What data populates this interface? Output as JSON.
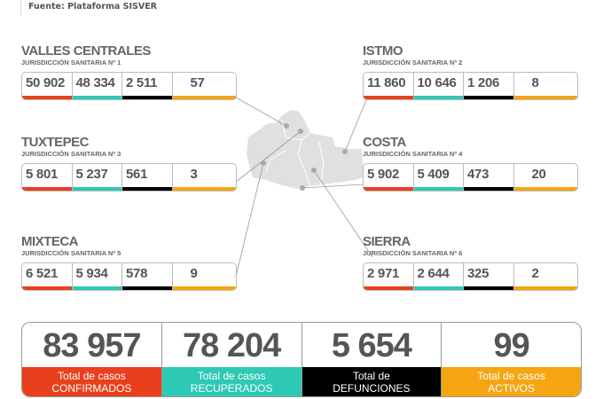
{
  "header": {
    "source": "Fuente: Plataforma SISVER"
  },
  "colors": {
    "confirmed": "#e8401c",
    "recovered": "#2ec9b4",
    "deaths": "#000000",
    "active": "#f5a512",
    "map": "#e0e0e0"
  },
  "regions": [
    {
      "name": "VALLES CENTRALES",
      "sub": "JURISDICCIÓN SANITARIA Nº 1",
      "values": [
        "50 902",
        "48 334",
        "2 511",
        "57"
      ]
    },
    {
      "name": "ISTMO",
      "sub": "JURISDICCIÓN SANITARIA Nº 2",
      "values": [
        "11 860",
        "10 646",
        "1 206",
        "8"
      ]
    },
    {
      "name": "TUXTEPEC",
      "sub": "JURISDICCIÓN SANITARIA Nº 3",
      "values": [
        "5 801",
        "5 237",
        "561",
        "3"
      ]
    },
    {
      "name": "COSTA",
      "sub": "JURISDICCIÓN SANITARIA Nº 4",
      "values": [
        "5 902",
        "5 409",
        "473",
        "20"
      ]
    },
    {
      "name": "MIXTECA",
      "sub": "JURISDICCIÓN SANITARIA Nº 5",
      "values": [
        "6 521",
        "5 934",
        "578",
        "9"
      ]
    },
    {
      "name": "SIERRA",
      "sub": "JURISDICCIÓN SANITARIA Nº 6",
      "values": [
        "2 971",
        "2 644",
        "325",
        "2"
      ]
    }
  ],
  "totals": [
    {
      "value": "83 957",
      "line1": "Total de casos",
      "line2": "CONFIRMADOS"
    },
    {
      "value": "78 204",
      "line1": "Total de casos",
      "line2": "RECUPERADOS"
    },
    {
      "value": "5 654",
      "line1": "Total de",
      "line2": "DEFUNCIONES"
    },
    {
      "value": "99",
      "line1": "Total de casos",
      "line2": "ACTIVOS"
    }
  ]
}
